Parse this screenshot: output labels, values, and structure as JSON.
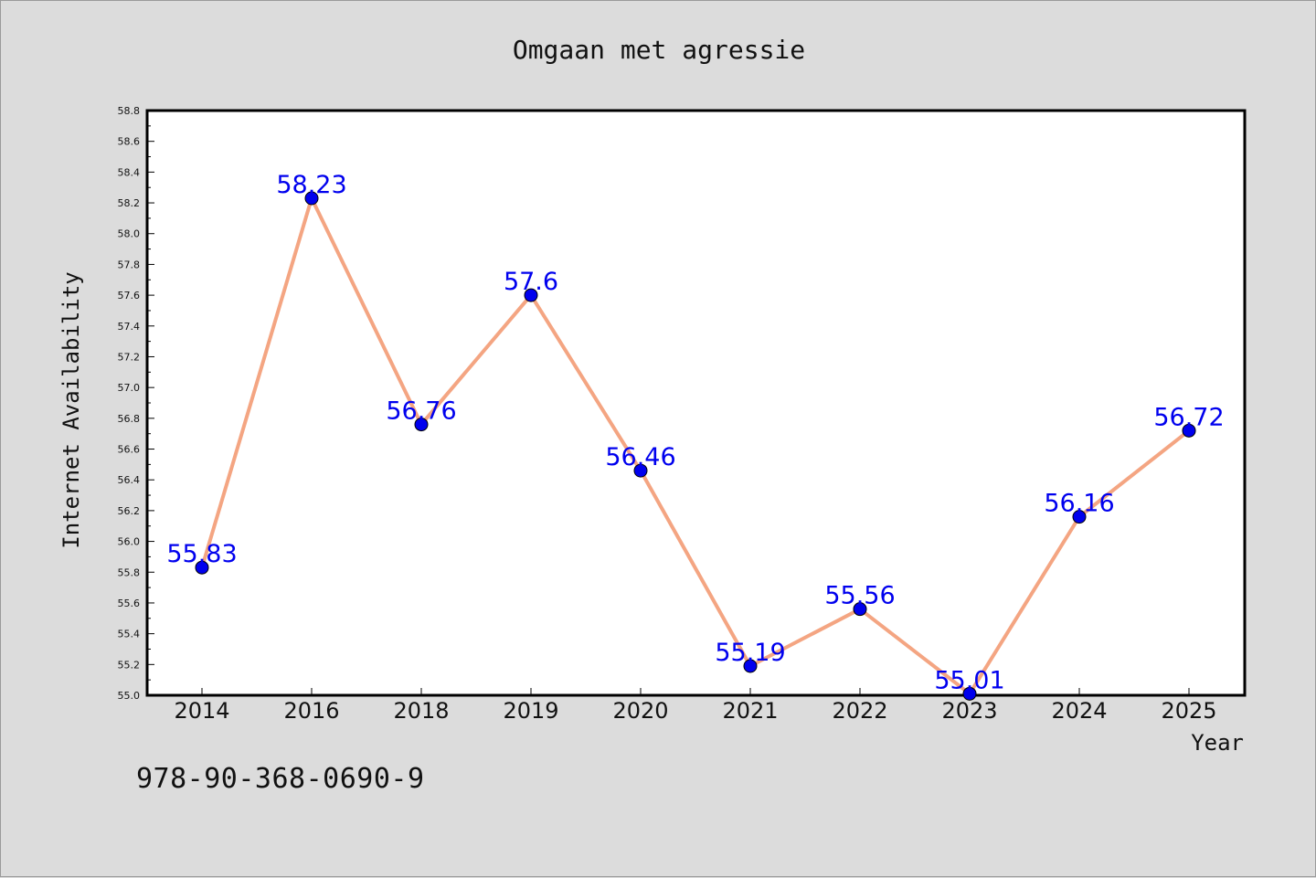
{
  "chart_data": {
    "type": "line",
    "title": "Omgaan met agressie",
    "xlabel": "Year",
    "ylabel": "Internet Availability",
    "categories": [
      "2014",
      "2016",
      "2018",
      "2019",
      "2020",
      "2021",
      "2022",
      "2023",
      "2024",
      "2025"
    ],
    "series": [
      {
        "values": [
          55.83,
          58.23,
          56.76,
          57.6,
          56.46,
          55.19,
          55.56,
          55.01,
          56.16,
          56.72
        ],
        "data_labels": [
          "55.83",
          "58.23",
          "56.76",
          "57.6",
          "56.46",
          "55.19",
          "55.56",
          "55.01",
          "56.16",
          "56.72"
        ],
        "line_color": "#f4a582",
        "marker_color": "#0000ee"
      }
    ],
    "ylim": [
      55.0,
      58.8
    ],
    "yticks": [
      "55.0",
      "55.2",
      "55.4",
      "55.6",
      "55.8",
      "56.0",
      "56.2",
      "56.4",
      "56.6",
      "56.8",
      "57.0",
      "57.2",
      "57.4",
      "57.6",
      "57.8",
      "58.0",
      "58.2",
      "58.4",
      "58.6",
      "58.8"
    ],
    "grid": false,
    "legend": "none"
  },
  "caption": "978-90-368-0690-9",
  "colors": {
    "background": "#dcdcdc",
    "plot_background": "#ffffff",
    "label_color": "#0000ee",
    "line_color": "#f4a582"
  }
}
